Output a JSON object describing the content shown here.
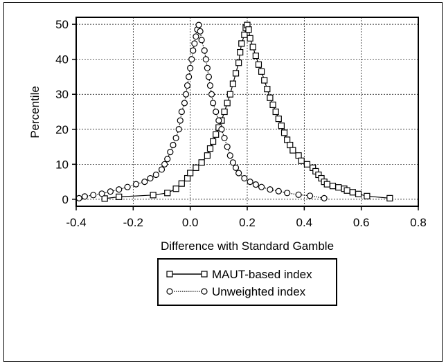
{
  "chart_data": {
    "type": "line",
    "title": "",
    "xlabel": "Difference with Standard Gamble",
    "ylabel": "Percentile",
    "xlim": [
      -0.4,
      0.8
    ],
    "ylim": [
      -2,
      52
    ],
    "x_ticks": [
      "-0.4",
      "-0.2",
      "0.0",
      "0.2",
      "0.4",
      "0.6",
      "0.8"
    ],
    "y_ticks": [
      "0",
      "10",
      "20",
      "30",
      "40",
      "50"
    ],
    "grid": true,
    "legend_position": "bottom-center",
    "series": [
      {
        "name": "MAUT-based index",
        "marker": "square",
        "line_style": "solid",
        "color": "#000000",
        "points": [
          [
            -0.3,
            0.2
          ],
          [
            -0.25,
            0.7
          ],
          [
            -0.13,
            1.2
          ],
          [
            -0.08,
            1.8
          ],
          [
            -0.05,
            3.0
          ],
          [
            -0.03,
            4.5
          ],
          [
            -0.01,
            6.0
          ],
          [
            0.0,
            7.5
          ],
          [
            0.02,
            9.0
          ],
          [
            0.04,
            10.5
          ],
          [
            0.06,
            12.5
          ],
          [
            0.07,
            14.5
          ],
          [
            0.08,
            16.5
          ],
          [
            0.09,
            18.5
          ],
          [
            0.1,
            20.5
          ],
          [
            0.11,
            22.5
          ],
          [
            0.12,
            25.0
          ],
          [
            0.13,
            27.5
          ],
          [
            0.14,
            30.0
          ],
          [
            0.15,
            33.0
          ],
          [
            0.16,
            36.0
          ],
          [
            0.17,
            39.0
          ],
          [
            0.175,
            42.0
          ],
          [
            0.18,
            44.5
          ],
          [
            0.19,
            47.0
          ],
          [
            0.195,
            49.0
          ],
          [
            0.2,
            49.8
          ],
          [
            0.205,
            48.5
          ],
          [
            0.21,
            46.0
          ],
          [
            0.22,
            43.5
          ],
          [
            0.23,
            41.0
          ],
          [
            0.24,
            38.5
          ],
          [
            0.25,
            36.5
          ],
          [
            0.26,
            34.0
          ],
          [
            0.27,
            31.5
          ],
          [
            0.28,
            29.0
          ],
          [
            0.29,
            27.0
          ],
          [
            0.3,
            25.0
          ],
          [
            0.31,
            23.0
          ],
          [
            0.32,
            21.0
          ],
          [
            0.33,
            19.0
          ],
          [
            0.34,
            17.0
          ],
          [
            0.35,
            15.5
          ],
          [
            0.36,
            14.0
          ],
          [
            0.38,
            12.5
          ],
          [
            0.39,
            11.0
          ],
          [
            0.41,
            10.0
          ],
          [
            0.43,
            9.0
          ],
          [
            0.44,
            8.0
          ],
          [
            0.45,
            7.0
          ],
          [
            0.46,
            6.0
          ],
          [
            0.47,
            5.0
          ],
          [
            0.48,
            4.3
          ],
          [
            0.5,
            3.8
          ],
          [
            0.52,
            3.4
          ],
          [
            0.54,
            3.0
          ],
          [
            0.55,
            2.5
          ],
          [
            0.57,
            2.0
          ],
          [
            0.59,
            1.5
          ],
          [
            0.62,
            0.9
          ],
          [
            0.7,
            0.3
          ]
        ]
      },
      {
        "name": "Unweighted index",
        "marker": "circle",
        "line_style": "dotted",
        "color": "#000000",
        "points": [
          [
            -0.39,
            0.3
          ],
          [
            -0.37,
            0.8
          ],
          [
            -0.34,
            1.2
          ],
          [
            -0.31,
            1.6
          ],
          [
            -0.28,
            2.2
          ],
          [
            -0.25,
            2.8
          ],
          [
            -0.22,
            3.5
          ],
          [
            -0.19,
            4.3
          ],
          [
            -0.16,
            5.0
          ],
          [
            -0.14,
            6.0
          ],
          [
            -0.12,
            7.0
          ],
          [
            -0.1,
            8.5
          ],
          [
            -0.09,
            10.0
          ],
          [
            -0.08,
            11.5
          ],
          [
            -0.07,
            13.5
          ],
          [
            -0.06,
            15.5
          ],
          [
            -0.05,
            17.5
          ],
          [
            -0.04,
            20.0
          ],
          [
            -0.035,
            22.5
          ],
          [
            -0.03,
            25.0
          ],
          [
            -0.02,
            27.5
          ],
          [
            -0.015,
            30.0
          ],
          [
            -0.01,
            32.5
          ],
          [
            -0.005,
            35.0
          ],
          [
            0.0,
            37.5
          ],
          [
            0.005,
            40.0
          ],
          [
            0.01,
            42.5
          ],
          [
            0.015,
            44.5
          ],
          [
            0.02,
            46.5
          ],
          [
            0.025,
            48.5
          ],
          [
            0.03,
            49.8
          ],
          [
            0.035,
            48.0
          ],
          [
            0.04,
            45.5
          ],
          [
            0.05,
            42.5
          ],
          [
            0.055,
            40.0
          ],
          [
            0.06,
            37.5
          ],
          [
            0.065,
            35.0
          ],
          [
            0.07,
            32.5
          ],
          [
            0.075,
            30.0
          ],
          [
            0.08,
            27.5
          ],
          [
            0.09,
            25.0
          ],
          [
            0.1,
            22.5
          ],
          [
            0.11,
            20.0
          ],
          [
            0.12,
            17.5
          ],
          [
            0.13,
            15.0
          ],
          [
            0.14,
            12.5
          ],
          [
            0.15,
            10.5
          ],
          [
            0.16,
            9.0
          ],
          [
            0.17,
            7.5
          ],
          [
            0.19,
            6.0
          ],
          [
            0.21,
            5.0
          ],
          [
            0.23,
            4.2
          ],
          [
            0.25,
            3.5
          ],
          [
            0.28,
            2.8
          ],
          [
            0.31,
            2.3
          ],
          [
            0.34,
            1.8
          ],
          [
            0.38,
            1.3
          ],
          [
            0.42,
            1.0
          ],
          [
            0.47,
            0.3
          ]
        ]
      }
    ]
  }
}
